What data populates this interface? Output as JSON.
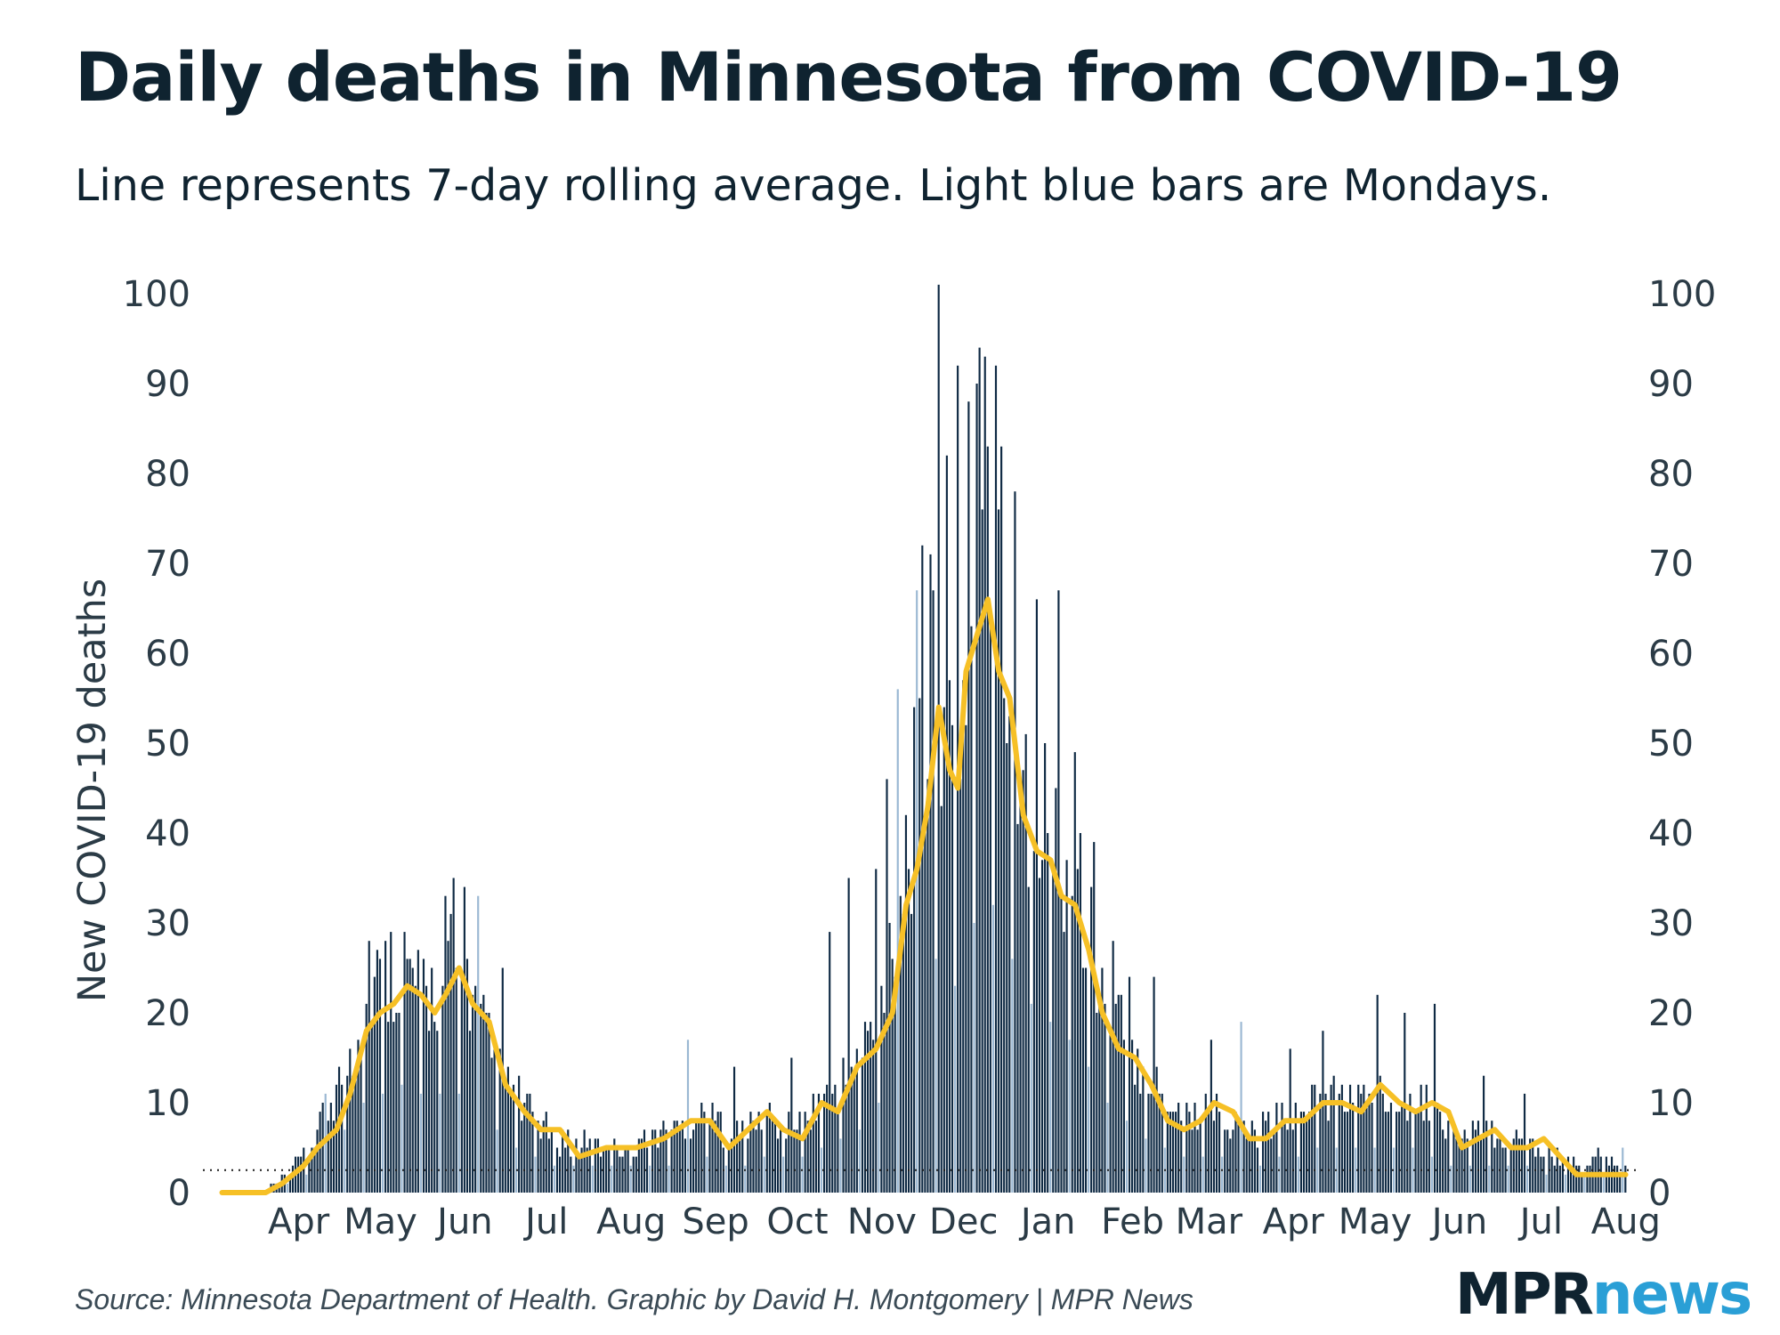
{
  "header": {
    "title": "Daily deaths in Minnesota from COVID-19",
    "subtitle": "Line represents 7-day rolling average. Light blue bars are Mondays."
  },
  "footer": {
    "source": "Source: Minnesota Department of Health. Graphic by David H. Montgomery | MPR News",
    "logo_mpr": "MPR",
    "logo_news": "news"
  },
  "colors": {
    "bar": "#0f2a44",
    "monday_bar": "#9bb8d3",
    "average_line": "#f6c026",
    "reference_line": "#1b1b1b"
  },
  "chart_data": {
    "type": "bar",
    "title": "Daily deaths in Minnesota from COVID-19",
    "subtitle": "Line represents 7-day rolling average. Light blue bars are Mondays.",
    "ylabel": "New COVID-19 deaths",
    "xlabel": "",
    "ylim": [
      0,
      100
    ],
    "yticks": [
      0,
      10,
      20,
      30,
      40,
      50,
      60,
      70,
      80,
      90,
      100
    ],
    "x_start": "2020-03-06",
    "x_end": "2021-08-03",
    "month_ticks": [
      {
        "label": "Apr",
        "date": "2020-04-01"
      },
      {
        "label": "May",
        "date": "2020-05-01"
      },
      {
        "label": "Jun",
        "date": "2020-06-01"
      },
      {
        "label": "Jul",
        "date": "2020-07-01"
      },
      {
        "label": "Aug",
        "date": "2020-08-01"
      },
      {
        "label": "Sep",
        "date": "2020-09-01"
      },
      {
        "label": "Oct",
        "date": "2020-10-01"
      },
      {
        "label": "Nov",
        "date": "2020-11-01"
      },
      {
        "label": "Dec",
        "date": "2020-12-01"
      },
      {
        "label": "Jan",
        "date": "2021-01-01"
      },
      {
        "label": "Feb",
        "date": "2021-02-01"
      },
      {
        "label": "Mar",
        "date": "2021-03-01"
      },
      {
        "label": "Apr",
        "date": "2021-04-01"
      },
      {
        "label": "May",
        "date": "2021-05-01"
      },
      {
        "label": "Jun",
        "date": "2021-06-01"
      },
      {
        "label": "Jul",
        "date": "2021-07-01"
      },
      {
        "label": "Aug",
        "date": "2021-08-01"
      }
    ],
    "daily_deaths_anchors": [
      {
        "date": "2020-03-06",
        "value": 0
      },
      {
        "date": "2020-03-20",
        "value": 0
      },
      {
        "date": "2020-03-31",
        "value": 2
      },
      {
        "date": "2020-04-10",
        "value": 6
      },
      {
        "date": "2020-04-20",
        "value": 13
      },
      {
        "date": "2020-04-30",
        "value": 22
      },
      {
        "date": "2020-05-10",
        "value": 24
      },
      {
        "date": "2020-05-20",
        "value": 21
      },
      {
        "date": "2020-05-29",
        "value": 24
      },
      {
        "date": "2020-06-05",
        "value": 21
      },
      {
        "date": "2020-06-15",
        "value": 13
      },
      {
        "date": "2020-06-25",
        "value": 9
      },
      {
        "date": "2020-07-05",
        "value": 6
      },
      {
        "date": "2020-07-15",
        "value": 5
      },
      {
        "date": "2020-08-01",
        "value": 5
      },
      {
        "date": "2020-08-20",
        "value": 7
      },
      {
        "date": "2020-09-01",
        "value": 8
      },
      {
        "date": "2020-09-10",
        "value": 6
      },
      {
        "date": "2020-09-20",
        "value": 8
      },
      {
        "date": "2020-10-01",
        "value": 7
      },
      {
        "date": "2020-10-10",
        "value": 9
      },
      {
        "date": "2020-10-20",
        "value": 12
      },
      {
        "date": "2020-10-31",
        "value": 17
      },
      {
        "date": "2020-11-10",
        "value": 33
      },
      {
        "date": "2020-11-20",
        "value": 48
      },
      {
        "date": "2020-11-24",
        "value": 54
      },
      {
        "date": "2020-11-30",
        "value": 45
      },
      {
        "date": "2020-12-05",
        "value": 58
      },
      {
        "date": "2020-12-12",
        "value": 66
      },
      {
        "date": "2020-12-20",
        "value": 54
      },
      {
        "date": "2020-12-28",
        "value": 41
      },
      {
        "date": "2021-01-05",
        "value": 38
      },
      {
        "date": "2021-01-15",
        "value": 31
      },
      {
        "date": "2021-01-25",
        "value": 20
      },
      {
        "date": "2021-02-05",
        "value": 14
      },
      {
        "date": "2021-02-15",
        "value": 10
      },
      {
        "date": "2021-02-25",
        "value": 8
      },
      {
        "date": "2021-03-05",
        "value": 9
      },
      {
        "date": "2021-03-18",
        "value": 6
      },
      {
        "date": "2021-04-01",
        "value": 8
      },
      {
        "date": "2021-04-12",
        "value": 10
      },
      {
        "date": "2021-04-25",
        "value": 10
      },
      {
        "date": "2021-05-05",
        "value": 11
      },
      {
        "date": "2021-05-20",
        "value": 10
      },
      {
        "date": "2021-06-01",
        "value": 6
      },
      {
        "date": "2021-06-15",
        "value": 6
      },
      {
        "date": "2021-07-01",
        "value": 5
      },
      {
        "date": "2021-07-15",
        "value": 3
      },
      {
        "date": "2021-08-03",
        "value": 3
      }
    ],
    "rolling_average_anchors": [
      {
        "date": "2020-03-06",
        "value": 0
      },
      {
        "date": "2020-03-22",
        "value": 0
      },
      {
        "date": "2020-03-28",
        "value": 1
      },
      {
        "date": "2020-04-05",
        "value": 3
      },
      {
        "date": "2020-04-10",
        "value": 5
      },
      {
        "date": "2020-04-17",
        "value": 7
      },
      {
        "date": "2020-04-22",
        "value": 11
      },
      {
        "date": "2020-04-28",
        "value": 18
      },
      {
        "date": "2020-05-03",
        "value": 20
      },
      {
        "date": "2020-05-08",
        "value": 21
      },
      {
        "date": "2020-05-13",
        "value": 23
      },
      {
        "date": "2020-05-18",
        "value": 22
      },
      {
        "date": "2020-05-23",
        "value": 20
      },
      {
        "date": "2020-05-27",
        "value": 22
      },
      {
        "date": "2020-06-01",
        "value": 25
      },
      {
        "date": "2020-06-06",
        "value": 21
      },
      {
        "date": "2020-06-12",
        "value": 19
      },
      {
        "date": "2020-06-18",
        "value": 12
      },
      {
        "date": "2020-06-25",
        "value": 9
      },
      {
        "date": "2020-07-01",
        "value": 7
      },
      {
        "date": "2020-07-08",
        "value": 7
      },
      {
        "date": "2020-07-15",
        "value": 4
      },
      {
        "date": "2020-07-25",
        "value": 5
      },
      {
        "date": "2020-08-05",
        "value": 5
      },
      {
        "date": "2020-08-15",
        "value": 6
      },
      {
        "date": "2020-08-25",
        "value": 8
      },
      {
        "date": "2020-09-01",
        "value": 8
      },
      {
        "date": "2020-09-08",
        "value": 5
      },
      {
        "date": "2020-09-15",
        "value": 7
      },
      {
        "date": "2020-09-22",
        "value": 9
      },
      {
        "date": "2020-09-28",
        "value": 7
      },
      {
        "date": "2020-10-05",
        "value": 6
      },
      {
        "date": "2020-10-12",
        "value": 10
      },
      {
        "date": "2020-10-18",
        "value": 9
      },
      {
        "date": "2020-10-25",
        "value": 14
      },
      {
        "date": "2020-11-01",
        "value": 16
      },
      {
        "date": "2020-11-07",
        "value": 20
      },
      {
        "date": "2020-11-12",
        "value": 32
      },
      {
        "date": "2020-11-16",
        "value": 36
      },
      {
        "date": "2020-11-20",
        "value": 43
      },
      {
        "date": "2020-11-24",
        "value": 54
      },
      {
        "date": "2020-11-28",
        "value": 47
      },
      {
        "date": "2020-12-01",
        "value": 45
      },
      {
        "date": "2020-12-04",
        "value": 58
      },
      {
        "date": "2020-12-08",
        "value": 62
      },
      {
        "date": "2020-12-12",
        "value": 66
      },
      {
        "date": "2020-12-16",
        "value": 58
      },
      {
        "date": "2020-12-20",
        "value": 55
      },
      {
        "date": "2020-12-25",
        "value": 42
      },
      {
        "date": "2020-12-30",
        "value": 38
      },
      {
        "date": "2021-01-04",
        "value": 37
      },
      {
        "date": "2021-01-08",
        "value": 33
      },
      {
        "date": "2021-01-13",
        "value": 32
      },
      {
        "date": "2021-01-18",
        "value": 27
      },
      {
        "date": "2021-01-23",
        "value": 20
      },
      {
        "date": "2021-01-29",
        "value": 16
      },
      {
        "date": "2021-02-04",
        "value": 15
      },
      {
        "date": "2021-02-10",
        "value": 12
      },
      {
        "date": "2021-02-16",
        "value": 8
      },
      {
        "date": "2021-02-22",
        "value": 7
      },
      {
        "date": "2021-02-28",
        "value": 8
      },
      {
        "date": "2021-03-05",
        "value": 10
      },
      {
        "date": "2021-03-12",
        "value": 9
      },
      {
        "date": "2021-03-18",
        "value": 6
      },
      {
        "date": "2021-03-24",
        "value": 6
      },
      {
        "date": "2021-03-31",
        "value": 8
      },
      {
        "date": "2021-04-07",
        "value": 8
      },
      {
        "date": "2021-04-14",
        "value": 10
      },
      {
        "date": "2021-04-21",
        "value": 10
      },
      {
        "date": "2021-04-28",
        "value": 9
      },
      {
        "date": "2021-05-05",
        "value": 12
      },
      {
        "date": "2021-05-12",
        "value": 10
      },
      {
        "date": "2021-05-18",
        "value": 9
      },
      {
        "date": "2021-05-24",
        "value": 10
      },
      {
        "date": "2021-05-30",
        "value": 9
      },
      {
        "date": "2021-06-04",
        "value": 5
      },
      {
        "date": "2021-06-10",
        "value": 6
      },
      {
        "date": "2021-06-16",
        "value": 7
      },
      {
        "date": "2021-06-22",
        "value": 5
      },
      {
        "date": "2021-06-28",
        "value": 5
      },
      {
        "date": "2021-07-04",
        "value": 6
      },
      {
        "date": "2021-07-10",
        "value": 4
      },
      {
        "date": "2021-07-16",
        "value": 2
      },
      {
        "date": "2021-07-22",
        "value": 2
      },
      {
        "date": "2021-07-28",
        "value": 2
      },
      {
        "date": "2021-08-03",
        "value": 2
      }
    ],
    "spikes": [
      {
        "date": "2020-04-13",
        "value": 11
      },
      {
        "date": "2020-04-29",
        "value": 28
      },
      {
        "date": "2020-05-05",
        "value": 28
      },
      {
        "date": "2020-05-12",
        "value": 29
      },
      {
        "date": "2020-05-27",
        "value": 33
      },
      {
        "date": "2020-05-30",
        "value": 35
      },
      {
        "date": "2020-06-03",
        "value": 34
      },
      {
        "date": "2020-06-08",
        "value": 33
      },
      {
        "date": "2020-06-17",
        "value": 25
      },
      {
        "date": "2020-08-24",
        "value": 17
      },
      {
        "date": "2020-09-10",
        "value": 14
      },
      {
        "date": "2020-10-01",
        "value": 15
      },
      {
        "date": "2020-10-15",
        "value": 29
      },
      {
        "date": "2020-10-22",
        "value": 35
      },
      {
        "date": "2020-11-01",
        "value": 36
      },
      {
        "date": "2020-11-05",
        "value": 46
      },
      {
        "date": "2020-11-09",
        "value": 56
      },
      {
        "date": "2020-11-16",
        "value": 67
      },
      {
        "date": "2020-11-18",
        "value": 72
      },
      {
        "date": "2020-11-21",
        "value": 71
      },
      {
        "date": "2020-11-24",
        "value": 101
      },
      {
        "date": "2020-11-27",
        "value": 82
      },
      {
        "date": "2020-12-01",
        "value": 92
      },
      {
        "date": "2020-12-05",
        "value": 88
      },
      {
        "date": "2020-12-08",
        "value": 90
      },
      {
        "date": "2020-12-09",
        "value": 94
      },
      {
        "date": "2020-12-11",
        "value": 93
      },
      {
        "date": "2020-12-15",
        "value": 92
      },
      {
        "date": "2020-12-17",
        "value": 83
      },
      {
        "date": "2020-12-22",
        "value": 78
      },
      {
        "date": "2020-12-30",
        "value": 66
      },
      {
        "date": "2021-01-07",
        "value": 67
      },
      {
        "date": "2021-01-13",
        "value": 49
      },
      {
        "date": "2021-01-20",
        "value": 39
      },
      {
        "date": "2021-01-27",
        "value": 28
      },
      {
        "date": "2021-02-02",
        "value": 24
      },
      {
        "date": "2021-02-11",
        "value": 24
      },
      {
        "date": "2021-03-04",
        "value": 17
      },
      {
        "date": "2021-03-15",
        "value": 19
      },
      {
        "date": "2021-04-02",
        "value": 16
      },
      {
        "date": "2021-04-14",
        "value": 18
      },
      {
        "date": "2021-05-04",
        "value": 22
      },
      {
        "date": "2021-05-14",
        "value": 20
      },
      {
        "date": "2021-05-25",
        "value": 21
      },
      {
        "date": "2021-06-12",
        "value": 13
      },
      {
        "date": "2021-06-27",
        "value": 11
      },
      {
        "date": "2021-07-24",
        "value": 5
      },
      {
        "date": "2021-08-02",
        "value": 5
      }
    ],
    "reference_level": 2.5,
    "legend": "none",
    "grid": false
  }
}
